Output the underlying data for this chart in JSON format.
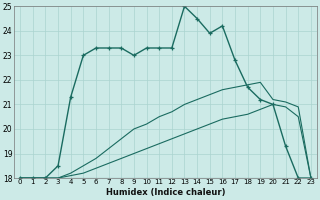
{
  "xlabel": "Humidex (Indice chaleur)",
  "bg_color": "#cceae7",
  "grid_color": "#aad4d0",
  "line_color": "#1a6b60",
  "xlim": [
    -0.5,
    23.5
  ],
  "ylim": [
    18,
    25
  ],
  "yticks": [
    18,
    19,
    20,
    21,
    22,
    23,
    24,
    25
  ],
  "xticks": [
    0,
    1,
    2,
    3,
    4,
    5,
    6,
    7,
    8,
    9,
    10,
    11,
    12,
    13,
    14,
    15,
    16,
    17,
    18,
    19,
    20,
    21,
    22,
    23
  ],
  "curve_flat_x": [
    0,
    1,
    2,
    3,
    4,
    5,
    6,
    7,
    8,
    9,
    10,
    11,
    12,
    13,
    14,
    15,
    16,
    17,
    18,
    19,
    20,
    21,
    22,
    23
  ],
  "curve_flat_y": [
    18,
    18,
    18,
    18,
    18,
    18,
    18,
    18,
    18,
    18,
    18,
    18,
    18,
    18,
    18,
    18,
    18,
    18,
    18,
    18,
    18,
    18,
    18,
    18
  ],
  "curve_low_x": [
    0,
    1,
    2,
    3,
    4,
    5,
    6,
    7,
    8,
    9,
    10,
    11,
    12,
    13,
    14,
    15,
    16,
    17,
    18,
    19,
    20,
    21,
    22,
    23
  ],
  "curve_low_y": [
    18.0,
    18.0,
    18.0,
    18.0,
    18.1,
    18.2,
    18.4,
    18.6,
    18.8,
    19.0,
    19.2,
    19.4,
    19.6,
    19.8,
    20.0,
    20.2,
    20.4,
    20.5,
    20.6,
    20.8,
    21.0,
    20.9,
    20.5,
    18.0
  ],
  "curve_mid_x": [
    0,
    1,
    2,
    3,
    4,
    5,
    6,
    7,
    8,
    9,
    10,
    11,
    12,
    13,
    14,
    15,
    16,
    17,
    18,
    19,
    20,
    21,
    22,
    23
  ],
  "curve_mid_y": [
    18.0,
    18.0,
    18.0,
    18.0,
    18.2,
    18.5,
    18.8,
    19.2,
    19.6,
    20.0,
    20.2,
    20.5,
    20.7,
    21.0,
    21.2,
    21.4,
    21.6,
    21.7,
    21.8,
    21.9,
    21.2,
    21.1,
    20.9,
    18.0
  ],
  "curve_main_x": [
    0,
    1,
    2,
    3,
    4,
    5,
    6,
    7,
    8,
    9,
    10,
    11,
    12,
    13,
    14,
    15,
    16,
    17,
    18,
    19,
    20,
    21,
    22,
    23
  ],
  "curve_main_y": [
    18.0,
    18.0,
    18.0,
    18.5,
    21.3,
    23.0,
    23.3,
    23.3,
    23.3,
    23.0,
    23.3,
    23.3,
    23.3,
    25.0,
    24.5,
    23.9,
    24.2,
    22.8,
    21.7,
    21.2,
    21.0,
    19.3,
    18.0,
    18.0
  ]
}
